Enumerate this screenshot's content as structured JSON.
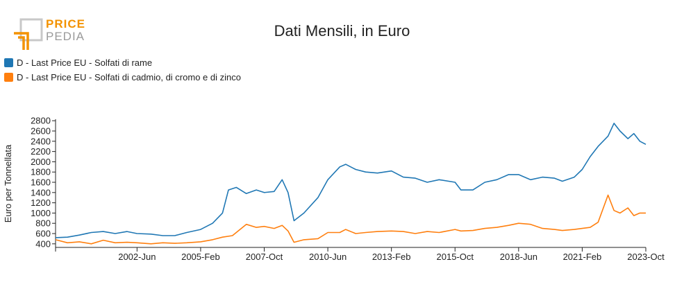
{
  "logo": {
    "word1": "PRICE",
    "word2": "PEDIA",
    "colors": {
      "orange": "#f39200",
      "gray": "#9a9a9a"
    }
  },
  "chart_data": {
    "type": "line",
    "title": "Dati Mensili, in Euro",
    "ylabel": "Euro per Tonnellata",
    "xlabel": "",
    "ylim": [
      330,
      2830
    ],
    "yticks": [
      400,
      600,
      800,
      1000,
      1200,
      1400,
      1600,
      1800,
      2000,
      2200,
      2400,
      2600,
      2800
    ],
    "x_start": "1999-01",
    "x_end": "2023-10",
    "xticks": [
      "2002-Jun",
      "2005-Feb",
      "2007-Oct",
      "2010-Jun",
      "2013-Feb",
      "2015-Oct",
      "2018-Jun",
      "2021-Feb",
      "2023-Oct"
    ],
    "legend_position": "top-left",
    "series": [
      {
        "name": "D - Last Price EU - Solfati di rame",
        "color": "#1f77b4",
        "points": [
          [
            "1999-01",
            520
          ],
          [
            "1999-07",
            530
          ],
          [
            "2000-01",
            570
          ],
          [
            "2000-07",
            620
          ],
          [
            "2001-01",
            640
          ],
          [
            "2001-07",
            600
          ],
          [
            "2002-01",
            640
          ],
          [
            "2002-06",
            600
          ],
          [
            "2003-01",
            590
          ],
          [
            "2003-07",
            560
          ],
          [
            "2004-01",
            560
          ],
          [
            "2004-07",
            620
          ],
          [
            "2005-02",
            680
          ],
          [
            "2005-08",
            800
          ],
          [
            "2006-01",
            1000
          ],
          [
            "2006-04",
            1450
          ],
          [
            "2006-08",
            1500
          ],
          [
            "2007-01",
            1380
          ],
          [
            "2007-06",
            1450
          ],
          [
            "2007-10",
            1400
          ],
          [
            "2008-03",
            1420
          ],
          [
            "2008-07",
            1650
          ],
          [
            "2008-10",
            1400
          ],
          [
            "2009-01",
            850
          ],
          [
            "2009-06",
            1000
          ],
          [
            "2010-01",
            1300
          ],
          [
            "2010-06",
            1650
          ],
          [
            "2010-12",
            1900
          ],
          [
            "2011-03",
            1950
          ],
          [
            "2011-08",
            1850
          ],
          [
            "2012-01",
            1800
          ],
          [
            "2012-07",
            1780
          ],
          [
            "2013-02",
            1820
          ],
          [
            "2013-08",
            1700
          ],
          [
            "2014-02",
            1680
          ],
          [
            "2014-08",
            1600
          ],
          [
            "2015-02",
            1650
          ],
          [
            "2015-10",
            1600
          ],
          [
            "2016-01",
            1450
          ],
          [
            "2016-07",
            1450
          ],
          [
            "2017-01",
            1600
          ],
          [
            "2017-07",
            1650
          ],
          [
            "2018-01",
            1750
          ],
          [
            "2018-06",
            1750
          ],
          [
            "2018-12",
            1650
          ],
          [
            "2019-06",
            1700
          ],
          [
            "2019-12",
            1680
          ],
          [
            "2020-04",
            1620
          ],
          [
            "2020-10",
            1700
          ],
          [
            "2021-02",
            1850
          ],
          [
            "2021-06",
            2100
          ],
          [
            "2021-10",
            2300
          ],
          [
            "2022-03",
            2500
          ],
          [
            "2022-06",
            2750
          ],
          [
            "2022-09",
            2600
          ],
          [
            "2023-01",
            2450
          ],
          [
            "2023-04",
            2550
          ],
          [
            "2023-07",
            2400
          ],
          [
            "2023-10",
            2340
          ]
        ]
      },
      {
        "name": "D - Last Price EU - Solfati di cadmio, di cromo e di zinco",
        "color": "#ff7f0e",
        "points": [
          [
            "1999-01",
            480
          ],
          [
            "1999-07",
            420
          ],
          [
            "2000-01",
            440
          ],
          [
            "2000-07",
            400
          ],
          [
            "2001-01",
            470
          ],
          [
            "2001-07",
            420
          ],
          [
            "2002-01",
            430
          ],
          [
            "2002-06",
            420
          ],
          [
            "2003-01",
            400
          ],
          [
            "2003-07",
            420
          ],
          [
            "2004-01",
            410
          ],
          [
            "2004-07",
            420
          ],
          [
            "2005-02",
            440
          ],
          [
            "2005-08",
            480
          ],
          [
            "2006-01",
            530
          ],
          [
            "2006-06",
            560
          ],
          [
            "2007-01",
            780
          ],
          [
            "2007-06",
            720
          ],
          [
            "2007-10",
            740
          ],
          [
            "2008-03",
            700
          ],
          [
            "2008-07",
            760
          ],
          [
            "2008-10",
            650
          ],
          [
            "2009-01",
            430
          ],
          [
            "2009-06",
            480
          ],
          [
            "2010-01",
            500
          ],
          [
            "2010-06",
            620
          ],
          [
            "2010-12",
            620
          ],
          [
            "2011-03",
            680
          ],
          [
            "2011-08",
            600
          ],
          [
            "2012-01",
            620
          ],
          [
            "2012-07",
            640
          ],
          [
            "2013-02",
            650
          ],
          [
            "2013-08",
            640
          ],
          [
            "2014-02",
            600
          ],
          [
            "2014-08",
            640
          ],
          [
            "2015-02",
            620
          ],
          [
            "2015-10",
            680
          ],
          [
            "2016-01",
            650
          ],
          [
            "2016-07",
            660
          ],
          [
            "2017-01",
            700
          ],
          [
            "2017-07",
            720
          ],
          [
            "2018-01",
            760
          ],
          [
            "2018-06",
            800
          ],
          [
            "2018-12",
            780
          ],
          [
            "2019-06",
            700
          ],
          [
            "2019-12",
            680
          ],
          [
            "2020-04",
            660
          ],
          [
            "2020-10",
            680
          ],
          [
            "2021-02",
            700
          ],
          [
            "2021-06",
            720
          ],
          [
            "2021-10",
            820
          ],
          [
            "2022-03",
            1350
          ],
          [
            "2022-06",
            1050
          ],
          [
            "2022-09",
            1000
          ],
          [
            "2023-01",
            1100
          ],
          [
            "2023-04",
            950
          ],
          [
            "2023-07",
            1000
          ],
          [
            "2023-10",
            1000
          ]
        ]
      }
    ]
  }
}
